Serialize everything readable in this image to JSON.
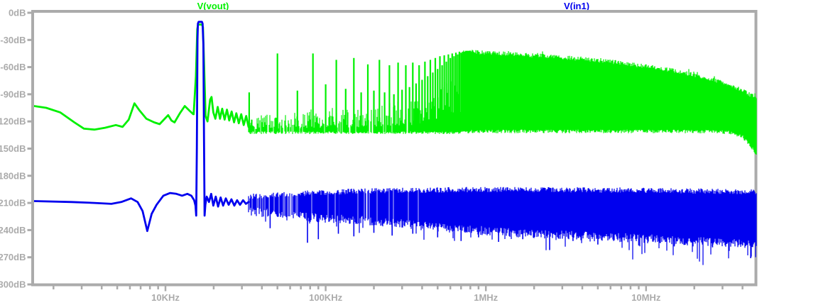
{
  "window": {
    "background": "#ffffff"
  },
  "chart_data": {
    "type": "line",
    "title": "",
    "description": "FFT magnitude spectrum, two traces on log frequency axis",
    "x_axis": {
      "scale": "log",
      "unit": "Hz",
      "min_hz": 1513,
      "max_hz": 49300000,
      "decade_labels": [
        "10KHz",
        "100KHz",
        "1MHz",
        "10MHz"
      ],
      "decade_values_hz": [
        10000,
        100000,
        1000000,
        10000000
      ],
      "minor_ticks": "2-9 per decade"
    },
    "y_axis": {
      "unit": "dB",
      "min_db": -300,
      "max_db": 0,
      "step_db": 30,
      "tick_labels": [
        "0dB",
        "-30dB",
        "-60dB",
        "-90dB",
        "-120dB",
        "-150dB",
        "-180dB",
        "-210dB",
        "-240dB",
        "-270dB",
        "-300dB"
      ]
    },
    "colors": {
      "axis": "#ABABAB",
      "background": "#ffffff"
    },
    "series": [
      {
        "name": "V(vout)",
        "color": "#00F000",
        "fundamental": {
          "freq_hz": 16666,
          "peak_db": -13
        },
        "smooth_points": [
          [
            1513,
            -103
          ],
          [
            1800,
            -105
          ],
          [
            2200,
            -110
          ],
          [
            2700,
            -121
          ],
          [
            3100,
            -128
          ],
          [
            3600,
            -129
          ],
          [
            4200,
            -127
          ],
          [
            4900,
            -124
          ],
          [
            5400,
            -126
          ],
          [
            5900,
            -118
          ],
          [
            6400,
            -100
          ],
          [
            6900,
            -108
          ],
          [
            7600,
            -117
          ],
          [
            8500,
            -121
          ],
          [
            9200,
            -123
          ],
          [
            9900,
            -117
          ],
          [
            10400,
            -113
          ],
          [
            10900,
            -119
          ],
          [
            11400,
            -121
          ],
          [
            12300,
            -111
          ],
          [
            13200,
            -103
          ],
          [
            14100,
            -108
          ],
          [
            14900,
            -112
          ],
          [
            15000,
            -112
          ],
          [
            15500,
            -70
          ],
          [
            15800,
            -18
          ],
          [
            16000,
            -13
          ],
          [
            16900,
            -13
          ],
          [
            17150,
            -16
          ],
          [
            17450,
            -60
          ],
          [
            17800,
            -114
          ],
          [
            18300,
            -120
          ],
          [
            19000,
            -96
          ],
          [
            19400,
            -93
          ],
          [
            19900,
            -110
          ],
          [
            20500,
            -117
          ],
          [
            21200,
            -104
          ],
          [
            21900,
            -117
          ],
          [
            22600,
            -106
          ],
          [
            23400,
            -118
          ],
          [
            24200,
            -107
          ],
          [
            25000,
            -119
          ],
          [
            25900,
            -109
          ],
          [
            26800,
            -121
          ],
          [
            27700,
            -111
          ],
          [
            28700,
            -122
          ],
          [
            29700,
            -112
          ],
          [
            30800,
            -124
          ],
          [
            31900,
            -114
          ],
          [
            33000,
            -126
          ]
        ],
        "harmonic_spikes": [
          [
            33300,
            -88
          ],
          [
            50000,
            -45
          ],
          [
            66600,
            -86
          ],
          [
            83300,
            -45
          ],
          [
            100000,
            -79
          ],
          [
            116600,
            -52
          ],
          [
            133300,
            -84
          ],
          [
            150000,
            -50
          ],
          [
            166600,
            -88
          ],
          [
            183300,
            -57
          ],
          [
            200000,
            -86
          ],
          [
            216600,
            -52
          ],
          [
            233300,
            -88
          ],
          [
            250000,
            -58
          ],
          [
            266600,
            -90
          ],
          [
            283300,
            -55
          ],
          [
            300000,
            -85
          ],
          [
            316600,
            -58
          ],
          [
            333300,
            -82
          ],
          [
            350000,
            -55
          ],
          [
            366600,
            -78
          ],
          [
            383300,
            -58
          ],
          [
            400000,
            -74
          ],
          [
            416600,
            -54
          ],
          [
            433300,
            -70
          ],
          [
            450000,
            -52
          ],
          [
            466600,
            -66
          ],
          [
            483300,
            -50
          ],
          [
            500000,
            -62
          ],
          [
            516600,
            -48
          ],
          [
            533300,
            -58
          ],
          [
            550000,
            -47
          ],
          [
            566600,
            -54
          ],
          [
            583300,
            -46
          ],
          [
            600000,
            -50
          ],
          [
            616600,
            -45
          ],
          [
            633300,
            -48
          ],
          [
            650000,
            -44
          ],
          [
            666600,
            -46
          ],
          [
            683300,
            -43
          ],
          [
            700000,
            -44
          ],
          [
            716600,
            -43
          ],
          [
            733300,
            -43
          ],
          [
            750000,
            -42
          ],
          [
            766600,
            -42
          ],
          [
            783300,
            -42
          ],
          [
            800000,
            -42
          ]
        ],
        "noise_hash": {
          "f_start": 33000,
          "f_end": 700000,
          "floor_db": -131,
          "floor_jitter_db": 3,
          "top_envelope": [
            [
              33000,
              -113
            ],
            [
              50000,
              -112
            ],
            [
              80000,
              -110
            ],
            [
              130000,
              -107
            ],
            [
              200000,
              -104
            ],
            [
              300000,
              -99
            ],
            [
              400000,
              -92
            ],
            [
              500000,
              -84
            ],
            [
              600000,
              -74
            ],
            [
              700000,
              -62
            ]
          ]
        },
        "dense_band": {
          "f_start": 700000,
          "top_envelope": [
            [
              700000,
              -46
            ],
            [
              800000,
              -43
            ],
            [
              1000000,
              -44
            ],
            [
              1300000,
              -45
            ],
            [
              2000000,
              -47
            ],
            [
              3500000,
              -50
            ],
            [
              6000000,
              -54
            ],
            [
              10000000,
              -59
            ],
            [
              15000000,
              -64
            ],
            [
              22000000,
              -70
            ],
            [
              30000000,
              -77
            ],
            [
              38000000,
              -84
            ],
            [
              44000000,
              -90
            ],
            [
              49300000,
              -94
            ]
          ],
          "bottom_envelope": [
            [
              700000,
              -131
            ],
            [
              20000000,
              -131
            ],
            [
              33000000,
              -132
            ],
            [
              40000000,
              -137
            ],
            [
              45000000,
              -147
            ],
            [
              48000000,
              -154
            ],
            [
              49300000,
              -158
            ]
          ]
        }
      },
      {
        "name": "V(in1)",
        "color": "#0000EE",
        "fundamental": {
          "freq_hz": 16666,
          "peak_db": -10
        },
        "smooth_points": [
          [
            1513,
            -208
          ],
          [
            2600,
            -209
          ],
          [
            3600,
            -210
          ],
          [
            4600,
            -211
          ],
          [
            5300,
            -209
          ],
          [
            6100,
            -205
          ],
          [
            6700,
            -209
          ],
          [
            7200,
            -219
          ],
          [
            7700,
            -241
          ],
          [
            8200,
            -222
          ],
          [
            8800,
            -212
          ],
          [
            9700,
            -202
          ],
          [
            10700,
            -199
          ],
          [
            11700,
            -200
          ],
          [
            12700,
            -202
          ],
          [
            13700,
            -200
          ],
          [
            14500,
            -202
          ],
          [
            15100,
            -207
          ],
          [
            15400,
            -213
          ],
          [
            15550,
            -224
          ],
          [
            15700,
            -150
          ],
          [
            15850,
            -30
          ],
          [
            15950,
            -12
          ],
          [
            16100,
            -10
          ],
          [
            16900,
            -10
          ],
          [
            17050,
            -12
          ],
          [
            17250,
            -35
          ],
          [
            17400,
            -140
          ],
          [
            17550,
            -224
          ],
          [
            17750,
            -212
          ],
          [
            18100,
            -203
          ],
          [
            18700,
            -209
          ],
          [
            19300,
            -200
          ],
          [
            19900,
            -213
          ],
          [
            20600,
            -203
          ],
          [
            21300,
            -214
          ],
          [
            22100,
            -204
          ],
          [
            22900,
            -213
          ],
          [
            23800,
            -205
          ],
          [
            24800,
            -212
          ],
          [
            25800,
            -206
          ],
          [
            26900,
            -213
          ],
          [
            28000,
            -207
          ],
          [
            29200,
            -212
          ],
          [
            30500,
            -207
          ],
          [
            31800,
            -211
          ],
          [
            33000,
            -209
          ]
        ],
        "noise_band": {
          "f_start": 33000,
          "top_envelope": [
            [
              33000,
              -203
            ],
            [
              60000,
              -200
            ],
            [
              150000,
              -197
            ],
            [
              400000,
              -196
            ],
            [
              1000000,
              -195
            ],
            [
              10000000,
              -196
            ],
            [
              49300000,
              -198
            ]
          ],
          "bottom_envelope": [
            [
              33000,
              -219
            ],
            [
              80000,
              -226
            ],
            [
              200000,
              -230
            ],
            [
              500000,
              -237
            ],
            [
              1500000,
              -243
            ],
            [
              5000000,
              -247
            ],
            [
              15000000,
              -251
            ],
            [
              35000000,
              -254
            ],
            [
              49300000,
              -257
            ]
          ],
          "deep_spikes": [
            [
              45000,
              -238
            ],
            [
              77000,
              -254
            ],
            [
              90000,
              -250
            ],
            [
              120000,
              -244
            ],
            [
              150000,
              -247
            ],
            [
              200000,
              -243
            ],
            [
              260000,
              -246
            ],
            [
              350000,
              -244
            ],
            [
              500000,
              -248
            ],
            [
              700000,
              -252
            ],
            [
              900000,
              -248
            ],
            [
              1200000,
              -253
            ],
            [
              1700000,
              -250
            ],
            [
              2500000,
              -262
            ],
            [
              3500000,
              -252
            ],
            [
              5000000,
              -256
            ],
            [
              7000000,
              -250
            ],
            [
              9000000,
              -257
            ],
            [
              12000000,
              -252
            ],
            [
              15000000,
              -258
            ],
            [
              20000000,
              -253
            ],
            [
              26000000,
              -259
            ],
            [
              33000000,
              -263
            ],
            [
              40000000,
              -257
            ],
            [
              45000000,
              -271
            ]
          ]
        }
      }
    ]
  }
}
